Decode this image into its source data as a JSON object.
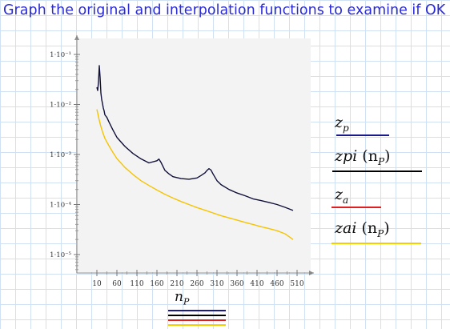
{
  "heading": "Graph the original and interpolation functions to examine if OK",
  "x_variable": {
    "base": "n",
    "sub": "P"
  },
  "legend": [
    {
      "base": "z",
      "sub": "p",
      "arg": "",
      "color": "#1a1a8c"
    },
    {
      "base": "zpi",
      "sub": "",
      "arg": "(n",
      "arg_sub": "P",
      "arg_end": ")",
      "color": "#000000"
    },
    {
      "base": "z",
      "sub": "a",
      "arg": "",
      "color": "#e02020"
    },
    {
      "base": "zai",
      "sub": "",
      "arg": "(n",
      "arg_sub": "P",
      "arg_end": ")",
      "color": "#f5d000"
    }
  ],
  "x_trace_colors": [
    "#1a1a8c",
    "#000000",
    "#e02020",
    "#f5d000"
  ],
  "chart_data": {
    "type": "line",
    "x_ticks": [
      "10",
      "60",
      "110",
      "160",
      "210",
      "260",
      "310",
      "360",
      "410",
      "460",
      "510"
    ],
    "y_ticks": [
      "1·10⁻¹",
      "1·10⁻²",
      "1·10⁻³",
      "1·10⁻⁴",
      "1·10⁻⁵"
    ],
    "y_scale": "log",
    "xlim": [
      10,
      510
    ],
    "ylim": [
      1e-05,
      0.1
    ],
    "series": [
      {
        "name": "zpi(nP)",
        "color": "#10103a",
        "x": [
          10,
          12,
          14,
          16,
          18,
          20,
          22,
          24,
          26,
          28,
          30,
          35,
          40,
          50,
          60,
          80,
          100,
          120,
          140,
          160,
          165,
          170,
          175,
          180,
          190,
          200,
          220,
          240,
          260,
          270,
          280,
          285,
          290,
          295,
          300,
          310,
          320,
          340,
          360,
          380,
          400,
          420,
          440,
          460,
          480,
          500
        ],
        "y": [
          0.022,
          0.019,
          0.028,
          0.06,
          0.035,
          0.017,
          0.0125,
          0.0105,
          0.0085,
          0.0075,
          0.0062,
          0.0055,
          0.0045,
          0.0031,
          0.0022,
          0.00145,
          0.00105,
          0.00082,
          0.00068,
          0.00075,
          0.00081,
          0.0007,
          0.00058,
          0.00048,
          0.00041,
          0.00036,
          0.00033,
          0.00032,
          0.00034,
          0.00038,
          0.00043,
          0.00048,
          0.00052,
          0.00049,
          0.00041,
          0.0003,
          0.00025,
          0.0002,
          0.00017,
          0.00015,
          0.00013,
          0.00012,
          0.00011,
          0.0001,
          8.8e-05,
          7.6e-05
        ]
      },
      {
        "name": "zai(nP)",
        "color": "#f5c400",
        "x": [
          10,
          15,
          20,
          25,
          30,
          40,
          50,
          60,
          80,
          100,
          120,
          140,
          160,
          180,
          200,
          220,
          240,
          260,
          280,
          300,
          320,
          340,
          360,
          380,
          400,
          420,
          440,
          460,
          480,
          500
        ],
        "y": [
          0.008,
          0.0052,
          0.0036,
          0.0027,
          0.0021,
          0.0015,
          0.0011,
          0.00083,
          0.00055,
          0.0004,
          0.0003,
          0.00024,
          0.000195,
          0.00016,
          0.000135,
          0.000115,
          0.0001,
          8.7e-05,
          7.7e-05,
          6.8e-05,
          6e-05,
          5.4e-05,
          4.9e-05,
          4.4e-05,
          4e-05,
          3.6e-05,
          3.3e-05,
          3e-05,
          2.6e-05,
          2e-05
        ]
      }
    ]
  }
}
